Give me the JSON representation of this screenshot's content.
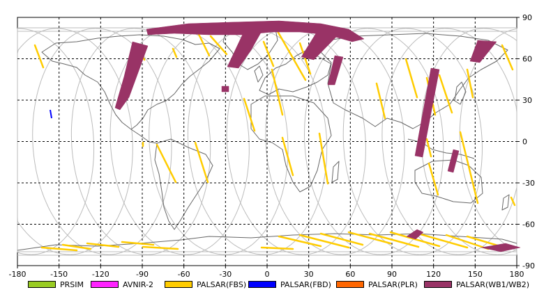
{
  "map": {
    "lon_ticks": [
      "-180",
      "-150",
      "-120",
      "-90",
      "-60",
      "-30",
      "0",
      "30",
      "60",
      "90",
      "120",
      "150",
      "180"
    ],
    "lat_ticks": [
      "90",
      "60",
      "30",
      "0",
      "-30",
      "-60",
      "-90"
    ],
    "colors": {
      "coast": "#666666",
      "orbit": "#bbbbbb",
      "grid": "#000000"
    }
  },
  "legend": [
    {
      "label": "PRSIM",
      "color": "#99cc22"
    },
    {
      "label": "AVNIR-2",
      "color": "#ff22ff"
    },
    {
      "label": "PALSAR(FBS)",
      "color": "#ffcc00"
    },
    {
      "label": "PALSAR(FBD)",
      "color": "#0000ff"
    },
    {
      "label": "PALSAR(PLR)",
      "color": "#ff6600"
    },
    {
      "label": "PALSAR(WB1/WB2)",
      "color": "#993366"
    }
  ]
}
